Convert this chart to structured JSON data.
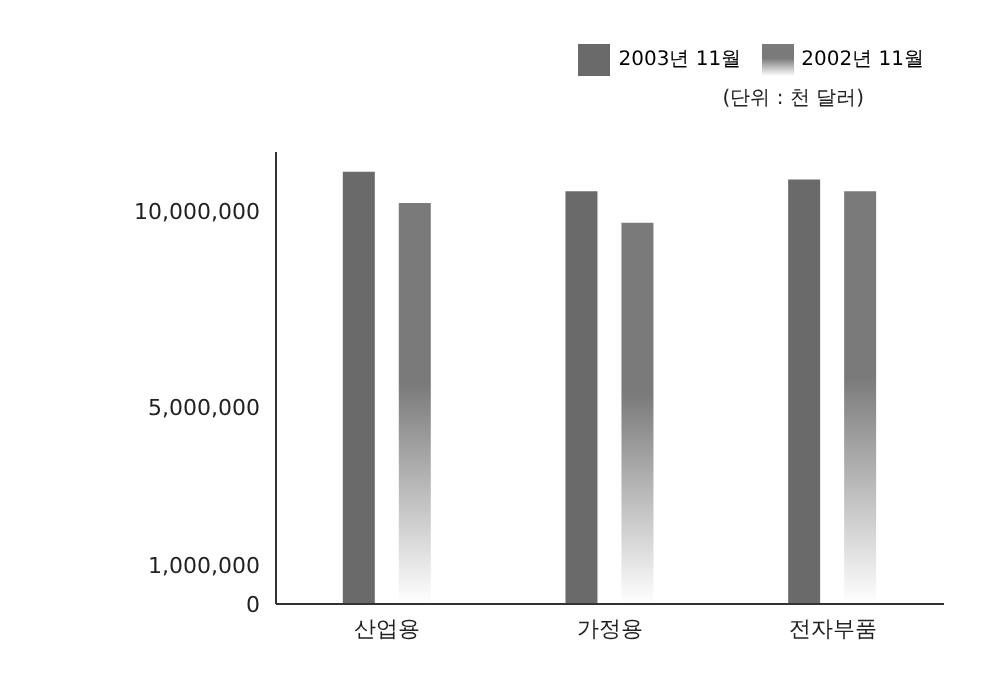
{
  "chart_data": {
    "type": "bar",
    "categories": [
      "산업용",
      "가정용",
      "전자부품"
    ],
    "series": [
      {
        "name": "2003년 11월",
        "color": "#6a6a6a",
        "values": [
          11000000,
          10500000,
          10800000
        ]
      },
      {
        "name": "2002년 11월",
        "color": "#7a7a7a",
        "values": [
          10200000,
          9700000,
          10500000
        ]
      }
    ],
    "ylim": [
      0,
      11500000
    ],
    "yticks": [
      0,
      {
        "value": 1000000,
        "label": "1,000,000"
      },
      {
        "value": 5000000,
        "label": "5,000,000"
      },
      {
        "value": 10000000,
        "label": "10,000,000"
      }
    ],
    "grid": false,
    "legend": "top right",
    "annotations": [
      "(단위 : 천 달러)"
    ]
  }
}
